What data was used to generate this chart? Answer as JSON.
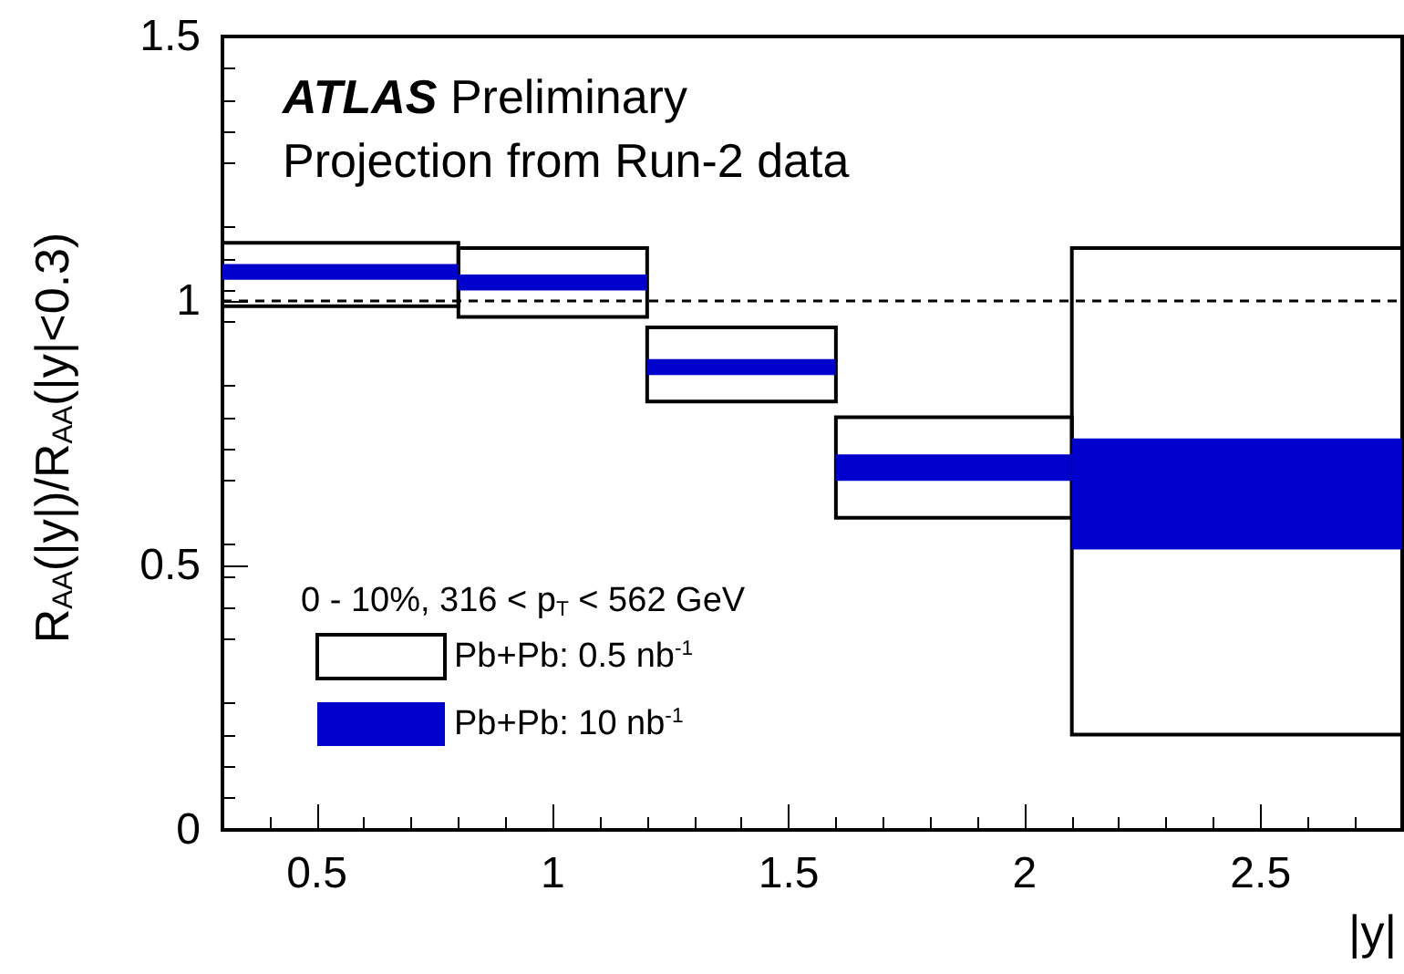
{
  "chart_data": {
    "type": "histogram",
    "xlabel": "|y|",
    "ylabel": "R$_{AA}$(|y|)/R$_{AA}$(|y|<0.3)",
    "annotations": [
      "ATLAS Preliminary",
      "Projection from Run-2 data",
      "0 - 10%, 316 < p$_{T}$ < 562 GeV"
    ],
    "bins": [
      0.3,
      0.8,
      1.2,
      1.6,
      2.1,
      2.8
    ],
    "series": [
      {
        "name": "Pb+Pb: 0.5 nb$^{-1}$",
        "color": "#000000",
        "line_style": "solid",
        "base": [
          0.99,
          0.97,
          0.81,
          0.59,
          0.18
        ],
        "values": [
          0.12,
          0.13,
          0.14,
          0.19,
          0.92
        ]
      },
      {
        "name": "Pb+Pb: 10 nb$^{-1}$",
        "color": "#0000cc",
        "base": [
          1.04,
          1.02,
          0.86,
          0.66,
          0.53
        ],
        "values": [
          0.03,
          0.03,
          0.03,
          0.05,
          0.21
        ]
      }
    ],
    "xlim": [
      0.3,
      2.8
    ],
    "xticks": [
      0.5,
      1,
      1.5,
      2,
      2.5
    ],
    "ylim": [
      0,
      1.5
    ],
    "yticks": [
      0,
      0.5,
      1,
      1.5
    ],
    "ref_lines": [
      {
        "axis": "y",
        "value": 1,
        "color": "#000000",
        "line_style": "dashed"
      }
    ],
    "grid": false,
    "legend": "bottom left"
  }
}
